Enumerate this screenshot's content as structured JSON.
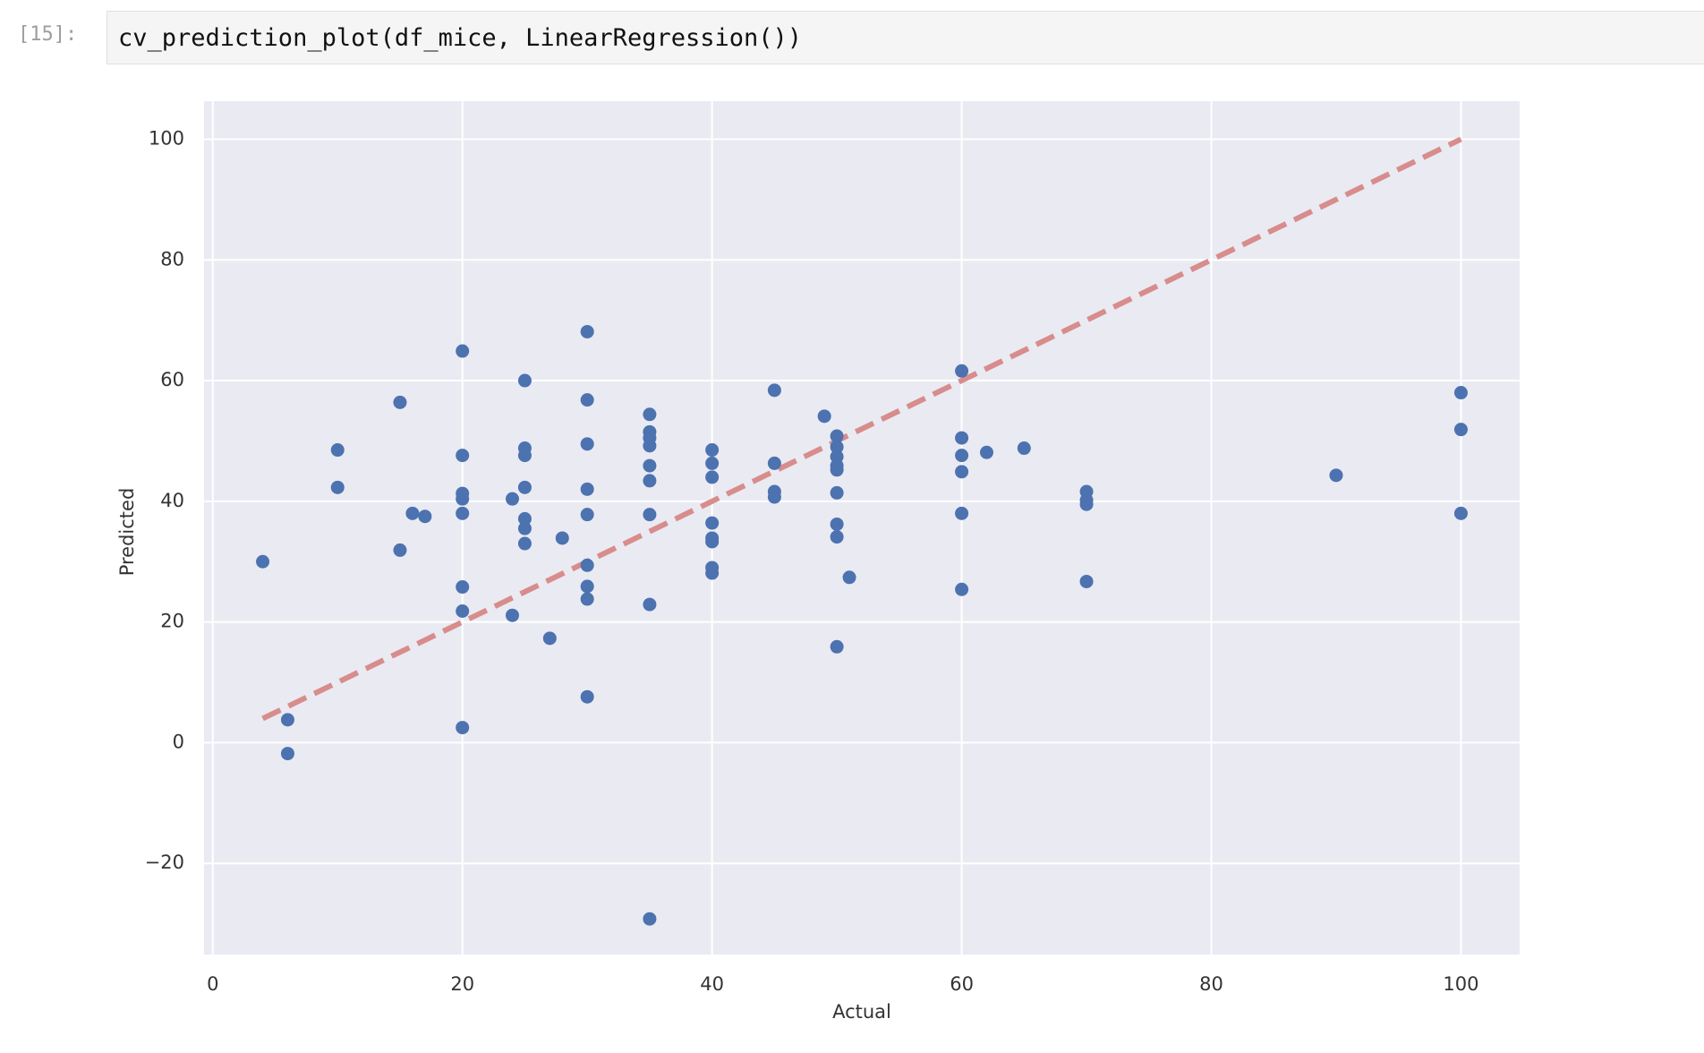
{
  "cell": {
    "prompt": "[15]:",
    "code": "cv_prediction_plot(df_mice, LinearRegression())"
  },
  "chart_data": {
    "type": "scatter",
    "xlabel": "Actual",
    "ylabel": "Predicted",
    "color": "#4c72b0",
    "background": "#eaeaf2",
    "grid": true,
    "xlim": [
      -0.7,
      104.7
    ],
    "ylim": [
      -35.1,
      106.3
    ],
    "xticks": [
      0,
      20,
      40,
      60,
      80,
      100
    ],
    "yticks": [
      {
        "value": -20,
        "label": "−20"
      },
      0,
      20,
      40,
      60,
      80,
      100
    ],
    "x": [
      4,
      6,
      6,
      10,
      10,
      15,
      15,
      16,
      17,
      20,
      20,
      20,
      20,
      20,
      20,
      20,
      20,
      24,
      24,
      25,
      25,
      25,
      25,
      25,
      25,
      25,
      28,
      27,
      30,
      30,
      30,
      30,
      30,
      30,
      30,
      30,
      30,
      35,
      35,
      35,
      35,
      35,
      35,
      35,
      35,
      35,
      40,
      40,
      40,
      40,
      40,
      40,
      40,
      40,
      45,
      45,
      45,
      45,
      49,
      50,
      50,
      50,
      50,
      50,
      50,
      50,
      50,
      50,
      51,
      60,
      60,
      60,
      60,
      60,
      60,
      62,
      65,
      70,
      70,
      70,
      70,
      90,
      100,
      100,
      100
    ],
    "values": [
      30,
      3.8,
      -1.8,
      48.5,
      42.3,
      56.4,
      31.9,
      38,
      37.5,
      64.9,
      47.6,
      41.3,
      40.4,
      38,
      25.8,
      21.8,
      2.5,
      40.4,
      21.1,
      60,
      48.8,
      47.6,
      42.3,
      37.1,
      35.5,
      33,
      33.9,
      17.3,
      68.1,
      56.8,
      49.5,
      42,
      37.8,
      29.4,
      25.9,
      23.8,
      7.6,
      54.4,
      51.5,
      50.5,
      49.2,
      45.9,
      43.4,
      37.8,
      22.9,
      -29.2,
      48.5,
      46.3,
      44,
      36.4,
      33.9,
      33.3,
      29,
      28.1,
      58.4,
      46.3,
      41.6,
      40.7,
      54.1,
      50.8,
      49,
      47.4,
      45.9,
      45.2,
      41.4,
      36.2,
      34.1,
      15.9,
      27.4,
      61.6,
      50.5,
      47.6,
      44.9,
      38,
      25.4,
      48.1,
      48.8,
      41.6,
      40.2,
      39.5,
      26.7,
      44.3,
      58,
      51.9,
      38
    ],
    "reference_line": {
      "x": [
        4,
        100
      ],
      "y": [
        4,
        100
      ],
      "color": "#d88c8c"
    }
  }
}
